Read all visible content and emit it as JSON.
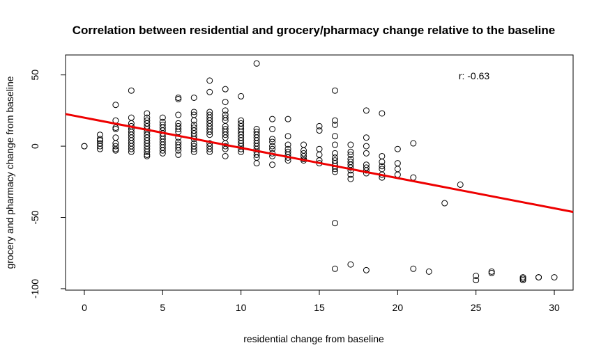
{
  "chart_data": {
    "type": "scatter",
    "title": "Correlation between residential and grocery/pharmacy change relative to the baseline",
    "xlabel": "residential change from baseline",
    "ylabel": "grocery and pharmacy change from baseline",
    "xlim": [
      -1.2,
      31.2
    ],
    "ylim": [
      -101,
      64
    ],
    "xticks": [
      0,
      5,
      10,
      15,
      20,
      25,
      30
    ],
    "yticks": [
      -100,
      -50,
      0,
      50
    ],
    "annotation": "r: -0.63",
    "point_color": "#000000",
    "line_color": "#ee0000",
    "regression": {
      "intercept": 20,
      "slope": -2.12
    },
    "points": [
      [
        0,
        0
      ],
      [
        0,
        0
      ],
      [
        1,
        8
      ],
      [
        1,
        4
      ],
      [
        1,
        2
      ],
      [
        1,
        0
      ],
      [
        1,
        -2
      ],
      [
        1,
        5
      ],
      [
        2,
        29
      ],
      [
        2,
        18
      ],
      [
        2,
        13
      ],
      [
        2,
        12
      ],
      [
        2,
        6
      ],
      [
        2,
        2
      ],
      [
        2,
        0
      ],
      [
        2,
        -2
      ],
      [
        2,
        -3
      ],
      [
        3,
        39
      ],
      [
        3,
        20
      ],
      [
        3,
        16
      ],
      [
        3,
        14
      ],
      [
        3,
        12
      ],
      [
        3,
        10
      ],
      [
        3,
        8
      ],
      [
        3,
        6
      ],
      [
        3,
        4
      ],
      [
        3,
        2
      ],
      [
        3,
        0
      ],
      [
        3,
        -2
      ],
      [
        3,
        -4
      ],
      [
        4,
        23
      ],
      [
        4,
        20
      ],
      [
        4,
        18
      ],
      [
        4,
        16
      ],
      [
        4,
        14
      ],
      [
        4,
        12
      ],
      [
        4,
        10
      ],
      [
        4,
        8
      ],
      [
        4,
        6
      ],
      [
        4,
        4
      ],
      [
        4,
        2
      ],
      [
        4,
        0
      ],
      [
        4,
        -2
      ],
      [
        4,
        -4
      ],
      [
        4,
        -6
      ],
      [
        4,
        -7
      ],
      [
        5,
        20
      ],
      [
        5,
        17
      ],
      [
        5,
        15
      ],
      [
        5,
        13
      ],
      [
        5,
        11
      ],
      [
        5,
        9
      ],
      [
        5,
        7
      ],
      [
        5,
        5
      ],
      [
        5,
        3
      ],
      [
        5,
        1
      ],
      [
        5,
        -1
      ],
      [
        5,
        -3
      ],
      [
        5,
        -5
      ],
      [
        6,
        34
      ],
      [
        6,
        33
      ],
      [
        6,
        22
      ],
      [
        6,
        16
      ],
      [
        6,
        14
      ],
      [
        6,
        12
      ],
      [
        6,
        10
      ],
      [
        6,
        6
      ],
      [
        6,
        3
      ],
      [
        6,
        1
      ],
      [
        6,
        -1
      ],
      [
        6,
        -3
      ],
      [
        6,
        -6
      ],
      [
        7,
        34
      ],
      [
        7,
        24
      ],
      [
        7,
        22
      ],
      [
        7,
        18
      ],
      [
        7,
        15
      ],
      [
        7,
        13
      ],
      [
        7,
        11
      ],
      [
        7,
        9
      ],
      [
        7,
        7
      ],
      [
        7,
        5
      ],
      [
        7,
        2
      ],
      [
        7,
        0
      ],
      [
        7,
        -2
      ],
      [
        7,
        -4
      ],
      [
        8,
        46
      ],
      [
        8,
        38
      ],
      [
        8,
        24
      ],
      [
        8,
        22
      ],
      [
        8,
        20
      ],
      [
        8,
        18
      ],
      [
        8,
        16
      ],
      [
        8,
        14
      ],
      [
        8,
        12
      ],
      [
        8,
        10
      ],
      [
        8,
        8
      ],
      [
        8,
        2
      ],
      [
        8,
        0
      ],
      [
        8,
        -2
      ],
      [
        8,
        -4
      ],
      [
        9,
        40
      ],
      [
        9,
        31
      ],
      [
        9,
        25
      ],
      [
        9,
        22
      ],
      [
        9,
        20
      ],
      [
        9,
        18
      ],
      [
        9,
        14
      ],
      [
        9,
        12
      ],
      [
        9,
        10
      ],
      [
        9,
        8
      ],
      [
        9,
        6
      ],
      [
        9,
        2
      ],
      [
        9,
        0
      ],
      [
        9,
        -2
      ],
      [
        9,
        -7
      ],
      [
        10,
        35
      ],
      [
        10,
        18
      ],
      [
        10,
        16
      ],
      [
        10,
        14
      ],
      [
        10,
        12
      ],
      [
        10,
        10
      ],
      [
        10,
        8
      ],
      [
        10,
        6
      ],
      [
        10,
        4
      ],
      [
        10,
        2
      ],
      [
        10,
        0
      ],
      [
        10,
        -2
      ],
      [
        10,
        -4
      ],
      [
        11,
        58
      ],
      [
        11,
        12
      ],
      [
        11,
        10
      ],
      [
        11,
        8
      ],
      [
        11,
        6
      ],
      [
        11,
        4
      ],
      [
        11,
        2
      ],
      [
        11,
        0
      ],
      [
        11,
        -2
      ],
      [
        11,
        -4
      ],
      [
        11,
        -6
      ],
      [
        11,
        -8
      ],
      [
        11,
        -12
      ],
      [
        12,
        19
      ],
      [
        12,
        12
      ],
      [
        12,
        5
      ],
      [
        12,
        3
      ],
      [
        12,
        0
      ],
      [
        12,
        -2
      ],
      [
        12,
        -5
      ],
      [
        12,
        -7
      ],
      [
        12,
        -13
      ],
      [
        13,
        19
      ],
      [
        13,
        7
      ],
      [
        13,
        1
      ],
      [
        13,
        -2
      ],
      [
        13,
        -4
      ],
      [
        13,
        -6
      ],
      [
        13,
        -8
      ],
      [
        13,
        -10
      ],
      [
        14,
        1
      ],
      [
        14,
        -3
      ],
      [
        14,
        -5
      ],
      [
        14,
        -7
      ],
      [
        14,
        -9
      ],
      [
        14,
        -10
      ],
      [
        15,
        14
      ],
      [
        15,
        11
      ],
      [
        15,
        -2
      ],
      [
        15,
        -6
      ],
      [
        15,
        -10
      ],
      [
        15,
        -12
      ],
      [
        16,
        39
      ],
      [
        16,
        18
      ],
      [
        16,
        15
      ],
      [
        16,
        7
      ],
      [
        16,
        1
      ],
      [
        16,
        -5
      ],
      [
        16,
        -8
      ],
      [
        16,
        -10
      ],
      [
        16,
        -12
      ],
      [
        16,
        -14
      ],
      [
        16,
        -16
      ],
      [
        16,
        -18
      ],
      [
        16,
        -54
      ],
      [
        16,
        -86
      ],
      [
        17,
        1
      ],
      [
        17,
        -4
      ],
      [
        17,
        -6
      ],
      [
        17,
        -9
      ],
      [
        17,
        -11
      ],
      [
        17,
        -13
      ],
      [
        17,
        -15
      ],
      [
        17,
        -17
      ],
      [
        17,
        -20
      ],
      [
        17,
        -23
      ],
      [
        17,
        -83
      ],
      [
        18,
        25
      ],
      [
        18,
        6
      ],
      [
        18,
        0
      ],
      [
        18,
        -5
      ],
      [
        18,
        -13
      ],
      [
        18,
        -15
      ],
      [
        18,
        -17
      ],
      [
        18,
        -19
      ],
      [
        18,
        -87
      ],
      [
        19,
        23
      ],
      [
        19,
        -7
      ],
      [
        19,
        -11
      ],
      [
        19,
        -14
      ],
      [
        19,
        -16
      ],
      [
        19,
        -20
      ],
      [
        19,
        -22
      ],
      [
        20,
        -2
      ],
      [
        20,
        -12
      ],
      [
        20,
        -16
      ],
      [
        20,
        -20
      ],
      [
        21,
        2
      ],
      [
        21,
        -22
      ],
      [
        21,
        -86
      ],
      [
        22,
        -88
      ],
      [
        23,
        -40
      ],
      [
        24,
        -27
      ],
      [
        25,
        -91
      ],
      [
        25,
        -94
      ],
      [
        26,
        -88
      ],
      [
        26,
        -89
      ],
      [
        28,
        -92
      ],
      [
        28,
        -93
      ],
      [
        28,
        -94
      ],
      [
        29,
        -92
      ],
      [
        29,
        -92
      ],
      [
        30,
        -92
      ]
    ]
  }
}
